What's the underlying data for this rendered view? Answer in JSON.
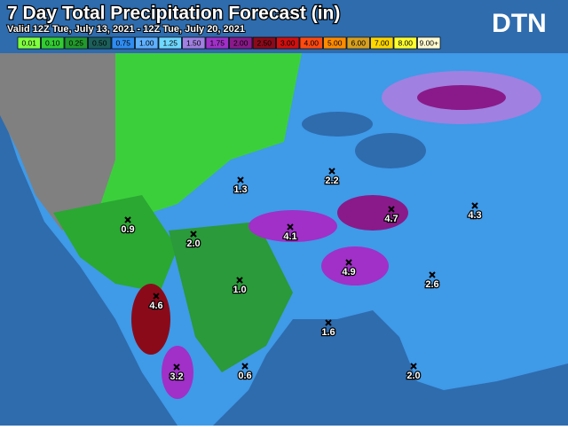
{
  "header": {
    "title": "7 Day Total Precipitation Forecast (in)",
    "subtitle": "Valid 12Z Tue, July 13, 2021 - 12Z Tue, July 20, 2021",
    "logo": "DTN"
  },
  "legend": [
    {
      "label": "0.01",
      "color": "#80ff40"
    },
    {
      "label": "0.10",
      "color": "#33cc33"
    },
    {
      "label": "0.25",
      "color": "#22992b"
    },
    {
      "label": "0.50",
      "color": "#1d5f5a"
    },
    {
      "label": "0.75",
      "color": "#2f8cf0"
    },
    {
      "label": "1.00",
      "color": "#5fb0ff"
    },
    {
      "label": "1.25",
      "color": "#70d8ff"
    },
    {
      "label": "1.50",
      "color": "#a080e0"
    },
    {
      "label": "1.75",
      "color": "#a030c8"
    },
    {
      "label": "2.00",
      "color": "#8a1a8a"
    },
    {
      "label": "2.50",
      "color": "#8b0a1a"
    },
    {
      "label": "3.00",
      "color": "#d01010"
    },
    {
      "label": "4.00",
      "color": "#ff4a10"
    },
    {
      "label": "5.00",
      "color": "#ff8c00"
    },
    {
      "label": "6.00",
      "color": "#d8a020"
    },
    {
      "label": "7.00",
      "color": "#ffd700"
    },
    {
      "label": "8.00",
      "color": "#ffff30"
    },
    {
      "label": "9.00+",
      "color": "#fffad0"
    }
  ],
  "points": [
    "1.3",
    "2.2",
    "0.9",
    "2.0",
    "4.1",
    "4.7",
    "4.3",
    "4.9",
    "1.0",
    "2.6",
    "4.6",
    "1.6",
    "3.2",
    "0.6",
    "2.0"
  ]
}
